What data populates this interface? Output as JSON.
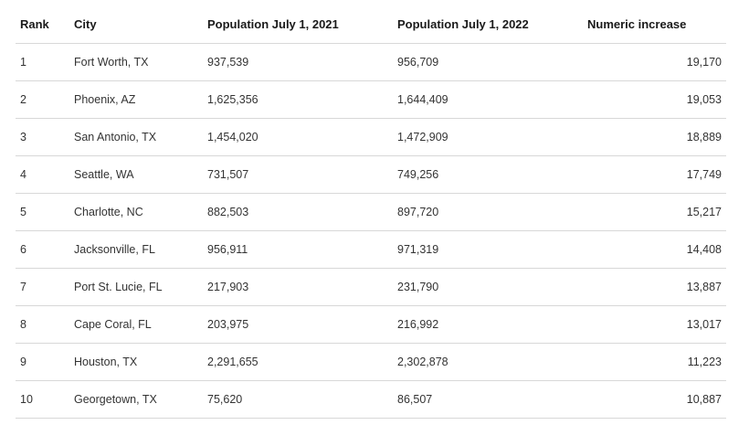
{
  "table": {
    "headers": {
      "rank": "Rank",
      "city": "City",
      "pop2021": "Population July 1, 2021",
      "pop2022": "Population July 1, 2022",
      "increase": "Numeric increase"
    },
    "rows": [
      {
        "rank": "1",
        "city": "Fort Worth, TX",
        "pop2021": "937,539",
        "pop2022": "956,709",
        "increase": "19,170"
      },
      {
        "rank": "2",
        "city": "Phoenix, AZ",
        "pop2021": "1,625,356",
        "pop2022": "1,644,409",
        "increase": "19,053"
      },
      {
        "rank": "3",
        "city": "San Antonio, TX",
        "pop2021": "1,454,020",
        "pop2022": "1,472,909",
        "increase": "18,889"
      },
      {
        "rank": "4",
        "city": "Seattle, WA",
        "pop2021": "731,507",
        "pop2022": "749,256",
        "increase": "17,749"
      },
      {
        "rank": "5",
        "city": "Charlotte, NC",
        "pop2021": "882,503",
        "pop2022": "897,720",
        "increase": "15,217"
      },
      {
        "rank": "6",
        "city": "Jacksonville, FL",
        "pop2021": "956,911",
        "pop2022": "971,319",
        "increase": "14,408"
      },
      {
        "rank": "7",
        "city": "Port St. Lucie, FL",
        "pop2021": "217,903",
        "pop2022": "231,790",
        "increase": "13,887"
      },
      {
        "rank": "8",
        "city": "Cape Coral, FL",
        "pop2021": "203,975",
        "pop2022": "216,992",
        "increase": "13,017"
      },
      {
        "rank": "9",
        "city": "Houston, TX",
        "pop2021": "2,291,655",
        "pop2022": "2,302,878",
        "increase": "11,223"
      },
      {
        "rank": "10",
        "city": "Georgetown, TX",
        "pop2021": "75,620",
        "pop2022": "86,507",
        "increase": "10,887"
      }
    ]
  },
  "colors": {
    "border": "#d8d8d8",
    "text": "#333333",
    "header_text": "#1a1a1a"
  }
}
